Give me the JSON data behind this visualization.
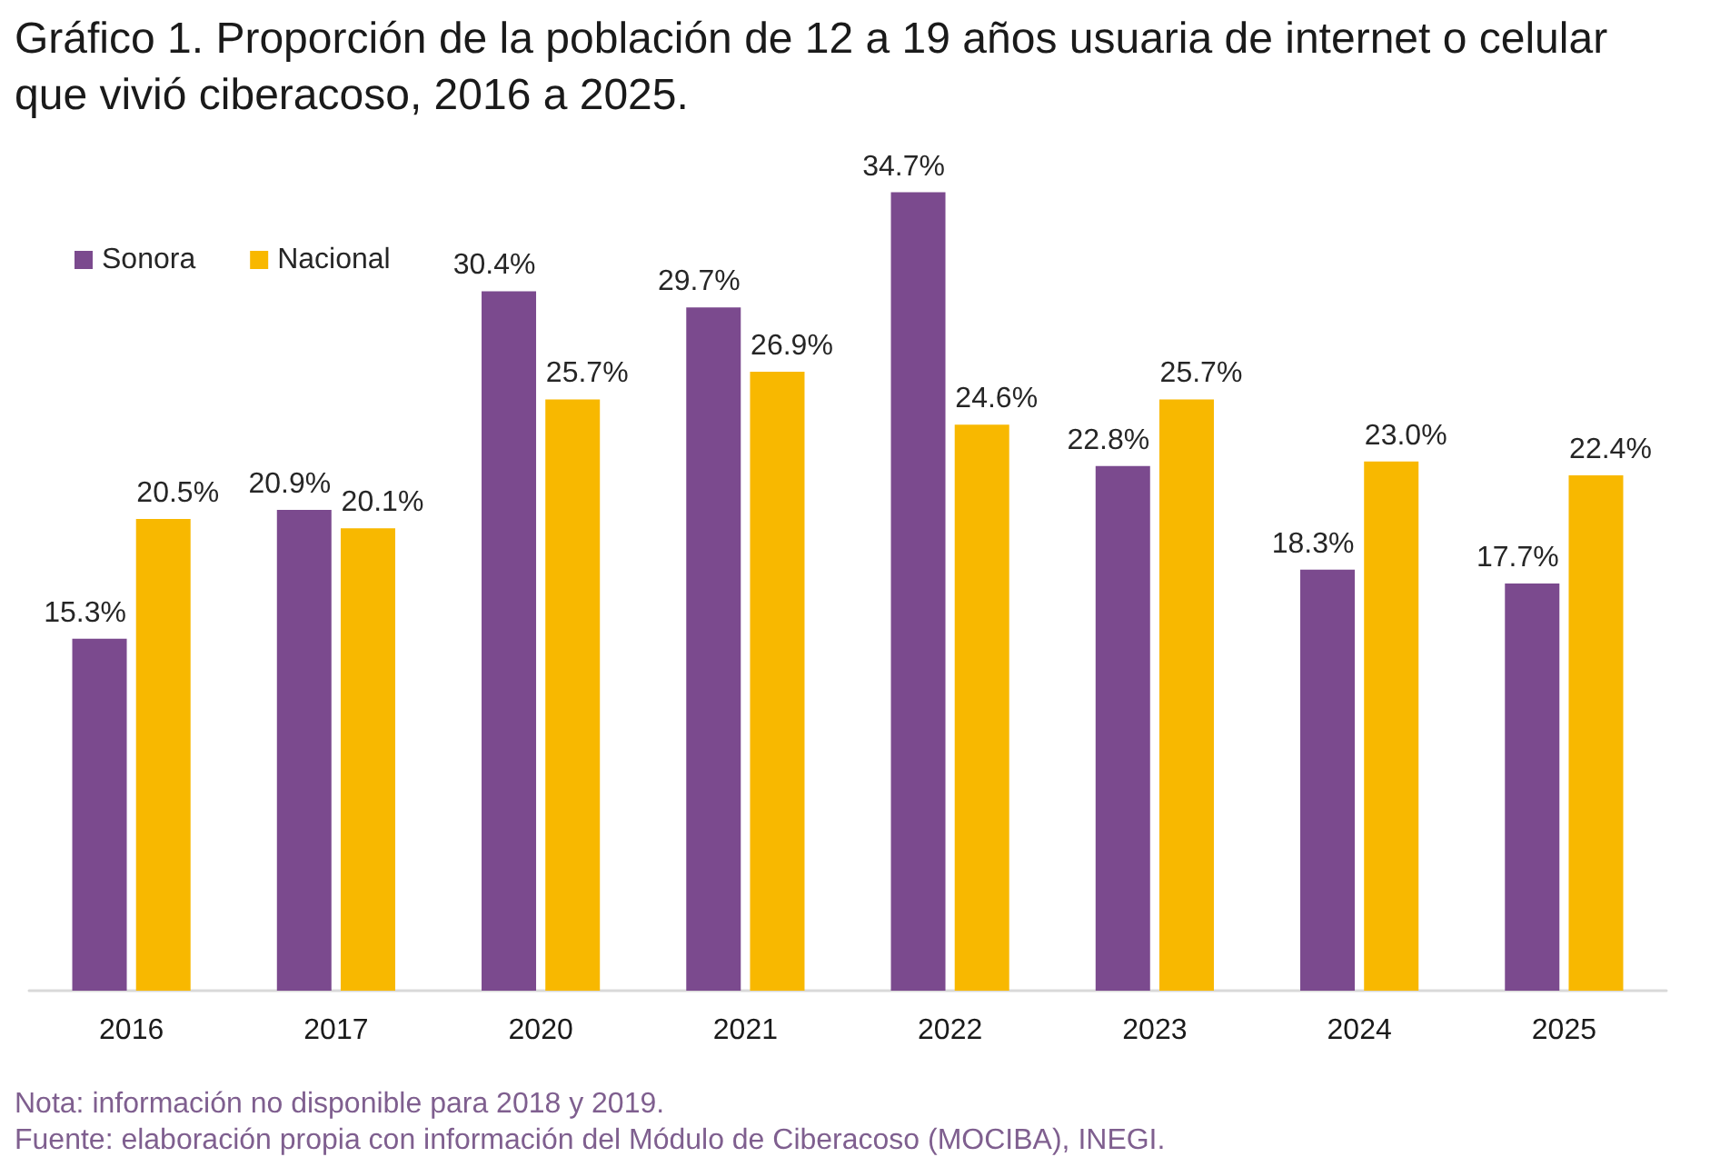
{
  "chart_data": {
    "type": "bar",
    "title": "Gráfico 1. Proporción de la población de 12 a 19 años usuaria de internet o celular que vivió ciberacoso, 2016 a 2025.",
    "categories": [
      "2016",
      "2017",
      "2020",
      "2021",
      "2022",
      "2023",
      "2024",
      "2025"
    ],
    "series": [
      {
        "name": "Sonora",
        "color": "#7b4a8e",
        "values": [
          15.3,
          20.9,
          30.4,
          29.7,
          34.7,
          22.8,
          18.3,
          17.7
        ],
        "value_labels": [
          "15.3%",
          "20.9%",
          "30.4%",
          "29.7%",
          "34.7%",
          "22.8%",
          "18.3%",
          "17.7%"
        ]
      },
      {
        "name": "Nacional",
        "color": "#f8b800",
        "values": [
          20.5,
          20.1,
          25.7,
          26.9,
          24.6,
          25.7,
          23.0,
          22.4
        ],
        "value_labels": [
          "20.5%",
          "20.1%",
          "25.7%",
          "26.9%",
          "24.6%",
          "25.7%",
          "23.0%",
          "22.4%"
        ]
      }
    ],
    "legend": "top left",
    "grid": false,
    "tick_labels": "x",
    "annotations": [
      "Nota: información no disponible para 2018 y 2019.",
      "Fuente: elaboración propia con información del Módulo de Ciberacoso (MOCIBA), INEGI."
    ]
  }
}
